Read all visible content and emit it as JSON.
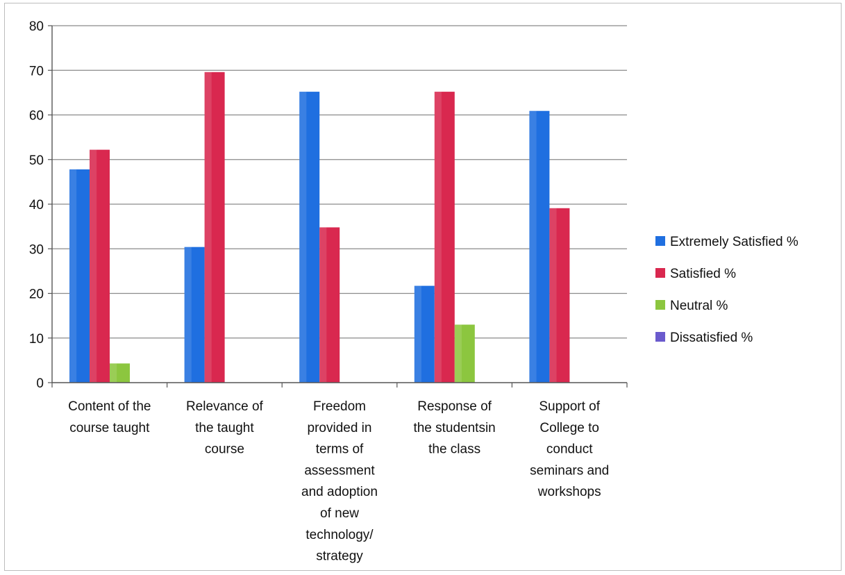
{
  "chart_data": {
    "type": "bar",
    "title": "",
    "xlabel": "",
    "ylabel": "",
    "ylim": [
      0,
      80
    ],
    "yticks": [
      0,
      10,
      20,
      30,
      40,
      50,
      60,
      70,
      80
    ],
    "grid": true,
    "legend_position": "right",
    "categories": [
      [
        "Content of the",
        "course taught"
      ],
      [
        "Relevance of",
        "the taught",
        "course"
      ],
      [
        "Freedom",
        "provided in",
        "terms of",
        "assessment",
        "and adoption",
        "of new",
        "technology/",
        "strategy"
      ],
      [
        "Response of",
        "the studentsin",
        "the class"
      ],
      [
        "Support of",
        "College to",
        "conduct",
        "seminars and",
        "workshops"
      ]
    ],
    "series": [
      {
        "name": "Extremely Satisfied %",
        "color": "#1f6fe0",
        "values": [
          47.8,
          30.4,
          65.2,
          21.7,
          60.9
        ]
      },
      {
        "name": "Satisfied %",
        "color": "#d9284f",
        "values": [
          52.2,
          69.6,
          34.8,
          65.2,
          39.1
        ]
      },
      {
        "name": "Neutral %",
        "color": "#8cc63f",
        "values": [
          4.3,
          0,
          0,
          13.0,
          0
        ]
      },
      {
        "name": "Dissatisfied %",
        "color": "#6a5acd",
        "values": [
          0,
          0,
          0,
          0,
          0
        ]
      }
    ]
  }
}
